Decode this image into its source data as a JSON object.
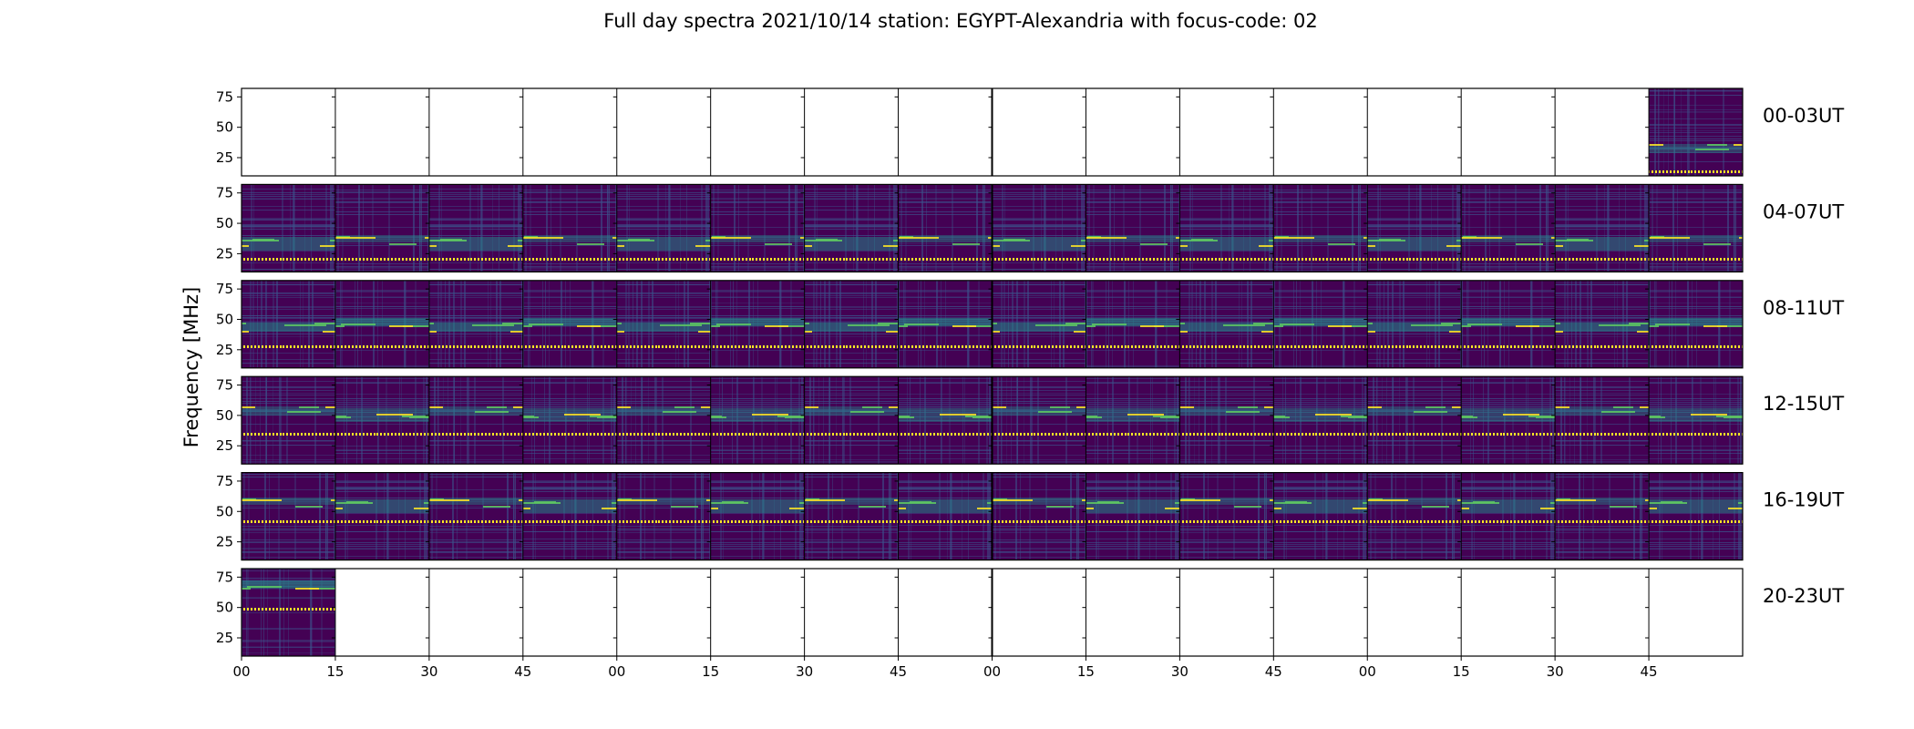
{
  "chart_data": {
    "type": "heatmap",
    "title": "Full day spectra 2021/10/14 station: EGYPT-Alexandria with focus-code: 02",
    "ylabel": "Frequency [MHz]",
    "xlabel": "",
    "ylim": [
      10,
      82
    ],
    "y_ticks": [
      "75",
      "50",
      "25"
    ],
    "x_tick_labels": [
      "00",
      "15",
      "30",
      "45",
      "00",
      "15",
      "30",
      "45",
      "00",
      "15",
      "30",
      "45",
      "00",
      "15",
      "30",
      "45"
    ],
    "colormap": [
      "#440154",
      "#3b528b",
      "#21918c",
      "#5ec962",
      "#fde725"
    ],
    "rows": [
      {
        "label": "00-03UT",
        "filled": [
          false,
          false,
          false,
          false,
          false,
          false,
          false,
          false,
          false,
          false,
          false,
          false,
          false,
          false,
          false,
          true
        ]
      },
      {
        "label": "04-07UT",
        "filled": [
          true,
          true,
          true,
          true,
          true,
          true,
          true,
          true,
          true,
          true,
          true,
          true,
          true,
          true,
          true,
          true
        ]
      },
      {
        "label": "08-11UT",
        "filled": [
          true,
          true,
          true,
          true,
          true,
          true,
          true,
          true,
          true,
          true,
          true,
          true,
          true,
          true,
          true,
          true
        ]
      },
      {
        "label": "12-15UT",
        "filled": [
          true,
          true,
          true,
          true,
          true,
          true,
          true,
          true,
          true,
          true,
          true,
          true,
          true,
          true,
          true,
          true
        ]
      },
      {
        "label": "16-19UT",
        "filled": [
          true,
          true,
          true,
          true,
          true,
          true,
          true,
          true,
          true,
          true,
          true,
          true,
          true,
          true,
          true,
          true
        ]
      },
      {
        "label": "20-23UT",
        "filled": [
          true,
          false,
          false,
          false,
          false,
          false,
          false,
          false,
          false,
          false,
          false,
          false,
          false,
          false,
          false,
          false
        ]
      }
    ]
  }
}
